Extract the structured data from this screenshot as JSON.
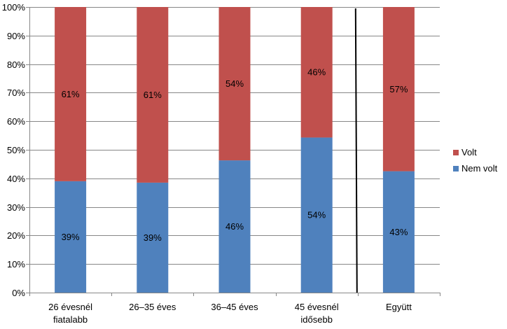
{
  "chart_data": {
    "type": "bar",
    "stacked": true,
    "percent": true,
    "categories": [
      [
        "26 évesnél",
        "fiatalabb"
      ],
      [
        "26–35 éves"
      ],
      [
        "36–45 éves"
      ],
      [
        "45 évesnél",
        "idősebb"
      ],
      [
        "Együtt"
      ]
    ],
    "series": [
      {
        "name": "Nem volt",
        "values": [
          39,
          38.5,
          46.3,
          54.3,
          42.5
        ],
        "labels": [
          "39%",
          "39%",
          "46%",
          "54%",
          "43%"
        ],
        "color": "#4f81bd"
      },
      {
        "name": "Volt",
        "values": [
          61,
          61.5,
          53.7,
          45.7,
          57.5
        ],
        "labels": [
          "61%",
          "61%",
          "54%",
          "46%",
          "57%"
        ],
        "color": "#c0504d"
      }
    ],
    "yticks": [
      "0%",
      "10%",
      "20%",
      "30%",
      "40%",
      "50%",
      "60%",
      "70%",
      "80%",
      "90%",
      "100%"
    ],
    "ylim": [
      0,
      100
    ],
    "grid": true,
    "separator_after_category": 3,
    "legend": {
      "position": "right",
      "entries": [
        "Volt",
        "Nem volt"
      ]
    },
    "xlabel": "",
    "ylabel": "",
    "title": ""
  }
}
